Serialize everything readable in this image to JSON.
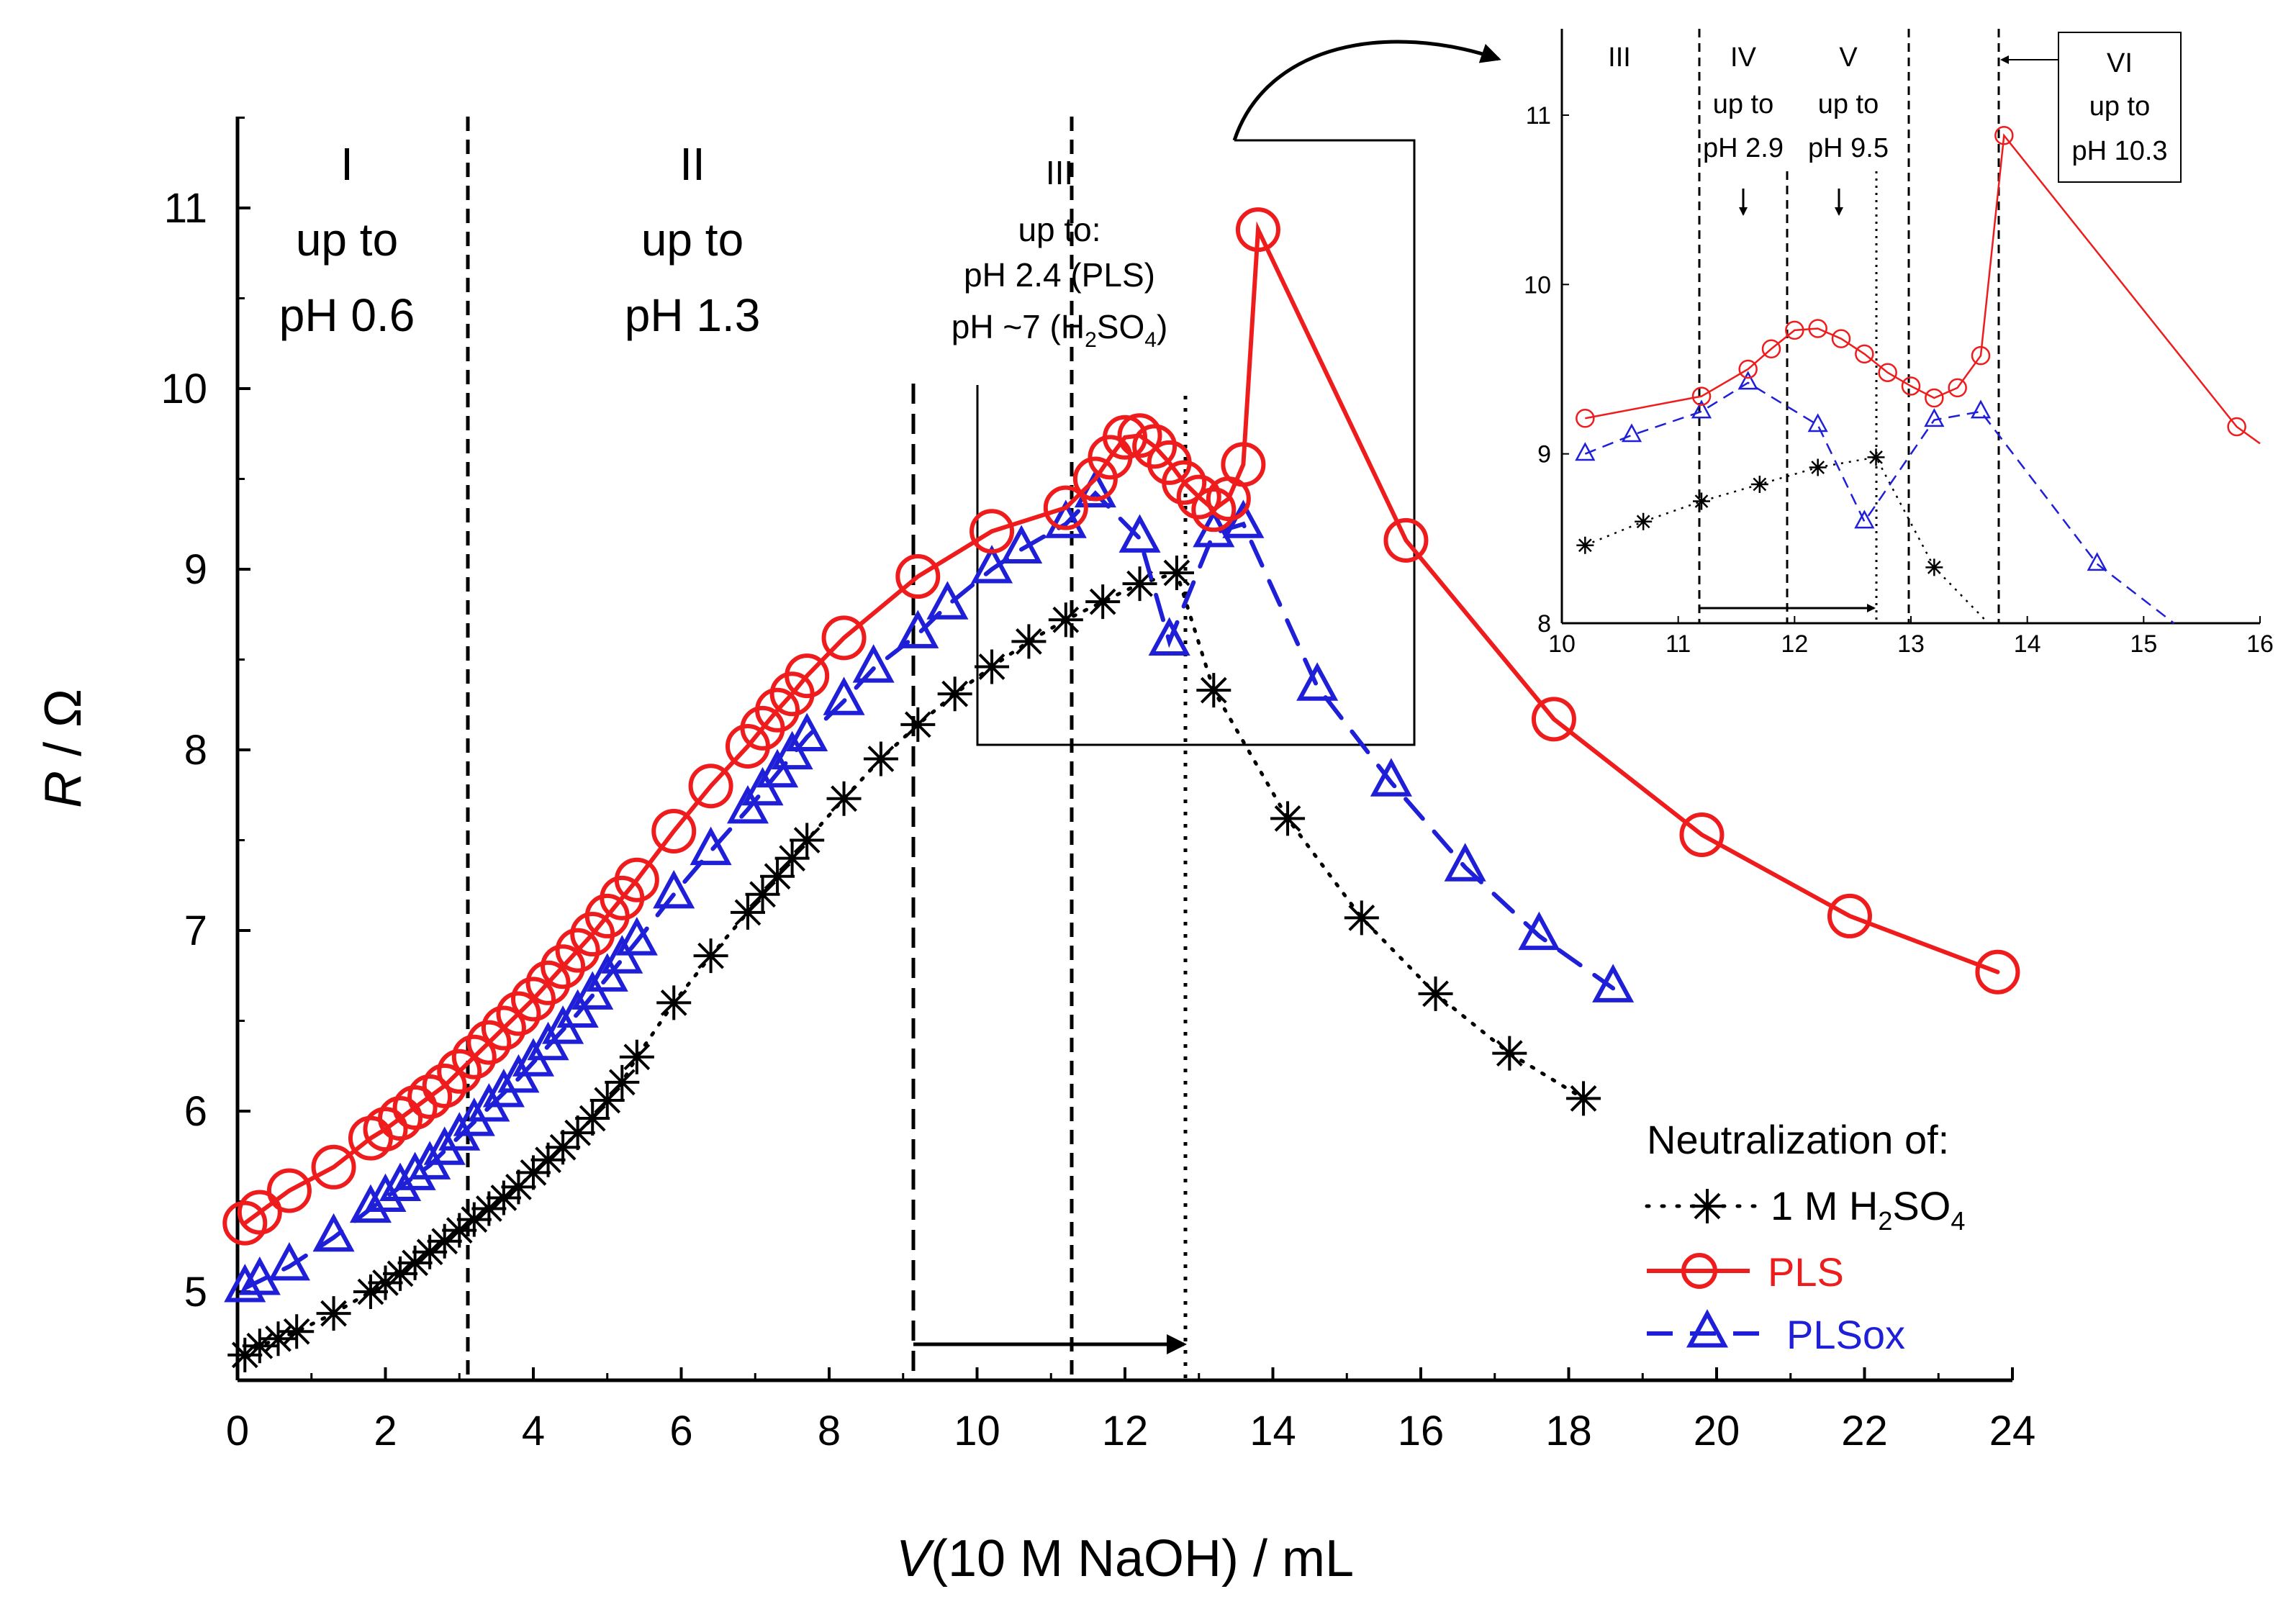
{
  "chart_data": {
    "type": "line",
    "title": "",
    "xlabel": {
      "italic": "V",
      "rest": "(10 M NaOH) / mL"
    },
    "ylabel": {
      "italic": "R",
      "rest": " / Ω"
    },
    "xlim": [
      0,
      24
    ],
    "ylim": [
      4.5,
      11.5
    ],
    "xticks": [
      "0",
      "2",
      "4",
      "6",
      "8",
      "10",
      "12",
      "14",
      "16",
      "18",
      "20",
      "22",
      "24"
    ],
    "yticks": [
      "5",
      "6",
      "7",
      "8",
      "9",
      "10",
      "11"
    ],
    "colors": {
      "h2so4": "#000000",
      "pls": "#ee1c1c",
      "plsox": "#1f1fd8"
    },
    "legend": {
      "title": "Neutralization of:",
      "h2so4": {
        "prefix": "1 M H",
        "sub1": "2",
        "mid": "SO",
        "sub2": "4"
      },
      "pls": "PLS",
      "plsox": "PLSox"
    },
    "series": [
      {
        "key": "h2so4",
        "name": "1 M H2SO4",
        "color": "#000000",
        "marker": "asterisk",
        "line": "dotted",
        "x": [
          0.1,
          0.3,
          0.55,
          0.8,
          1.3,
          1.8,
          2.0,
          2.2,
          2.4,
          2.6,
          2.8,
          3.0,
          3.2,
          3.4,
          3.6,
          3.8,
          4.0,
          4.2,
          4.4,
          4.6,
          4.8,
          5.0,
          5.2,
          5.4,
          5.9,
          6.4,
          6.9,
          7.1,
          7.3,
          7.5,
          7.7,
          8.2,
          8.7,
          9.2,
          9.7,
          10.2,
          10.7,
          11.2,
          11.7,
          12.2,
          12.7,
          13.2,
          14.2,
          15.2,
          16.2,
          17.2,
          18.2
        ],
        "y": [
          4.65,
          4.7,
          4.74,
          4.78,
          4.88,
          5.0,
          5.05,
          5.1,
          5.16,
          5.22,
          5.28,
          5.34,
          5.4,
          5.46,
          5.52,
          5.58,
          5.66,
          5.73,
          5.8,
          5.88,
          5.96,
          6.06,
          6.16,
          6.3,
          6.6,
          6.86,
          7.1,
          7.2,
          7.3,
          7.4,
          7.5,
          7.73,
          7.95,
          8.14,
          8.31,
          8.46,
          8.6,
          8.72,
          8.82,
          8.92,
          8.98,
          8.33,
          7.62,
          7.07,
          6.65,
          6.32,
          6.07
        ]
      },
      {
        "key": "pls",
        "name": "PLS",
        "color": "#ee1c1c",
        "marker": "circle",
        "line": "solid",
        "x": [
          0.1,
          0.3,
          0.7,
          1.3,
          1.8,
          2.0,
          2.2,
          2.4,
          2.6,
          2.8,
          3.0,
          3.2,
          3.4,
          3.6,
          3.8,
          4.0,
          4.2,
          4.4,
          4.6,
          4.8,
          5.0,
          5.2,
          5.4,
          5.9,
          6.4,
          6.9,
          7.1,
          7.3,
          7.5,
          7.7,
          8.2,
          9.2,
          10.2,
          11.2,
          11.6,
          11.8,
          12.0,
          12.2,
          12.4,
          12.6,
          12.8,
          13.0,
          13.2,
          13.4,
          13.6,
          13.8,
          15.8,
          17.8,
          19.8,
          21.8,
          23.8
        ],
        "y": [
          5.38,
          5.44,
          5.56,
          5.69,
          5.85,
          5.9,
          5.96,
          6.02,
          6.08,
          6.14,
          6.22,
          6.3,
          6.38,
          6.46,
          6.54,
          6.62,
          6.71,
          6.8,
          6.89,
          6.98,
          7.08,
          7.18,
          7.28,
          7.55,
          7.8,
          8.02,
          8.12,
          8.22,
          8.31,
          8.41,
          8.62,
          8.96,
          9.21,
          9.34,
          9.5,
          9.62,
          9.73,
          9.74,
          9.68,
          9.59,
          9.48,
          9.4,
          9.33,
          9.39,
          9.58,
          10.88,
          9.16,
          8.17,
          7.53,
          7.08,
          6.77
        ]
      },
      {
        "key": "plsox",
        "name": "PLSox",
        "color": "#1f1fd8",
        "marker": "triangle",
        "line": "dashed",
        "x": [
          0.1,
          0.3,
          0.7,
          1.3,
          1.8,
          2.0,
          2.2,
          2.4,
          2.6,
          2.8,
          3.0,
          3.2,
          3.4,
          3.6,
          3.8,
          4.0,
          4.2,
          4.4,
          4.6,
          4.8,
          5.0,
          5.2,
          5.4,
          5.9,
          6.4,
          6.9,
          7.1,
          7.3,
          7.5,
          7.7,
          8.2,
          8.6,
          9.2,
          9.6,
          10.2,
          10.6,
          11.2,
          11.6,
          12.2,
          12.6,
          13.2,
          13.6,
          14.6,
          15.6,
          16.6,
          17.6,
          18.6
        ],
        "y": [
          5.02,
          5.06,
          5.14,
          5.3,
          5.46,
          5.52,
          5.58,
          5.64,
          5.7,
          5.78,
          5.86,
          5.94,
          6.02,
          6.1,
          6.18,
          6.27,
          6.36,
          6.45,
          6.54,
          6.64,
          6.74,
          6.84,
          6.94,
          7.2,
          7.44,
          7.67,
          7.77,
          7.87,
          7.97,
          8.07,
          8.27,
          8.45,
          8.64,
          8.8,
          9.0,
          9.11,
          9.25,
          9.42,
          9.17,
          8.6,
          9.2,
          9.25,
          8.35,
          7.82,
          7.35,
          6.97,
          6.68
        ]
      }
    ],
    "regions": {
      "r1": {
        "numeral": "I",
        "line1": "up to",
        "line2": "pH 0.6"
      },
      "r2": {
        "numeral": "II",
        "line1": "up to",
        "line2": "pH 1.3"
      },
      "r3": {
        "numeral": "III",
        "line1": "up to:",
        "line2": "pH 2.4 (PLS)",
        "line3_prefix": "pH ~7 (H",
        "line3_sub1": "2",
        "line3_mid": "SO",
        "line3_sub2": "4",
        "line3_suffix": ")"
      }
    },
    "inset": {
      "xlim": [
        10,
        16
      ],
      "ylim": [
        8,
        11.5
      ],
      "xticks": [
        "10",
        "11",
        "12",
        "13",
        "14",
        "15",
        "16"
      ],
      "yticks": [
        "8",
        "9",
        "10",
        "11"
      ],
      "labels": {
        "r3": "III",
        "r4": {
          "numeral": "IV",
          "line1": "up to",
          "line2": "pH 2.9"
        },
        "r5": {
          "numeral": "V",
          "line1": "up to",
          "line2": "pH 9.5"
        },
        "r6": {
          "numeral": "VI",
          "line1": "up to",
          "line2": "pH 10.3"
        }
      }
    }
  }
}
